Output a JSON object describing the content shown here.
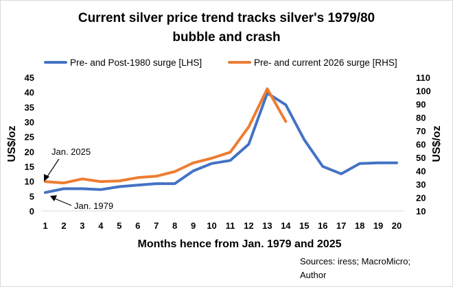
{
  "chart_data": {
    "type": "line",
    "title": "Current silver price trend tracks silver's 1979/80 bubble and crash",
    "title_lines": [
      "Current silver price trend tracks silver's 1979/80",
      "bubble and crash"
    ],
    "xlabel": "Months hence from Jan. 1979 and 2025",
    "ylabel_left": "US$/oz",
    "ylabel_right": "US$/oz",
    "x": [
      1,
      2,
      3,
      4,
      5,
      6,
      7,
      8,
      9,
      10,
      11,
      12,
      13,
      14,
      15,
      16,
      17,
      18,
      19,
      20
    ],
    "x_tick_labels": [
      "1",
      "2",
      "3",
      "4",
      "5",
      "6",
      "7",
      "8",
      "9",
      "10",
      "11",
      "12",
      "13",
      "14",
      "15",
      "16",
      "17",
      "18",
      "19",
      "20"
    ],
    "ylim_left": [
      0,
      45
    ],
    "yticks_left": [
      0,
      5,
      10,
      15,
      20,
      25,
      30,
      35,
      40,
      45
    ],
    "ylim_right": [
      10,
      110
    ],
    "yticks_right": [
      10,
      20,
      30,
      40,
      50,
      60,
      70,
      80,
      90,
      100,
      110
    ],
    "grid": false,
    "legend_position": "top",
    "series": [
      {
        "name": "Pre- and Post-1980 surge [LHS]",
        "axis": "left",
        "color": "#4472c4",
        "values": [
          6.2,
          7.5,
          7.5,
          7.2,
          8.2,
          8.7,
          9.2,
          9.2,
          13.5,
          16.0,
          17.0,
          22.5,
          39.7,
          35.8,
          24.0,
          15.0,
          12.5,
          16.0,
          16.2,
          16.2
        ]
      },
      {
        "name": "Pre- and current 2026 surge [RHS]",
        "axis": "right",
        "color": "#ed7d31",
        "values": [
          32,
          31,
          34,
          32,
          32.5,
          35,
          36,
          39.5,
          46,
          49.5,
          54,
          73,
          101.5,
          77
        ]
      }
    ],
    "annotations": [
      {
        "text": "Jan. 2025",
        "points_to": {
          "series": 1,
          "x": 1
        }
      },
      {
        "text": "Jan. 1979",
        "points_to": {
          "series": 0,
          "x": 1
        }
      }
    ],
    "source": [
      "Sources: iress; MacroMicro;",
      "Author"
    ]
  }
}
